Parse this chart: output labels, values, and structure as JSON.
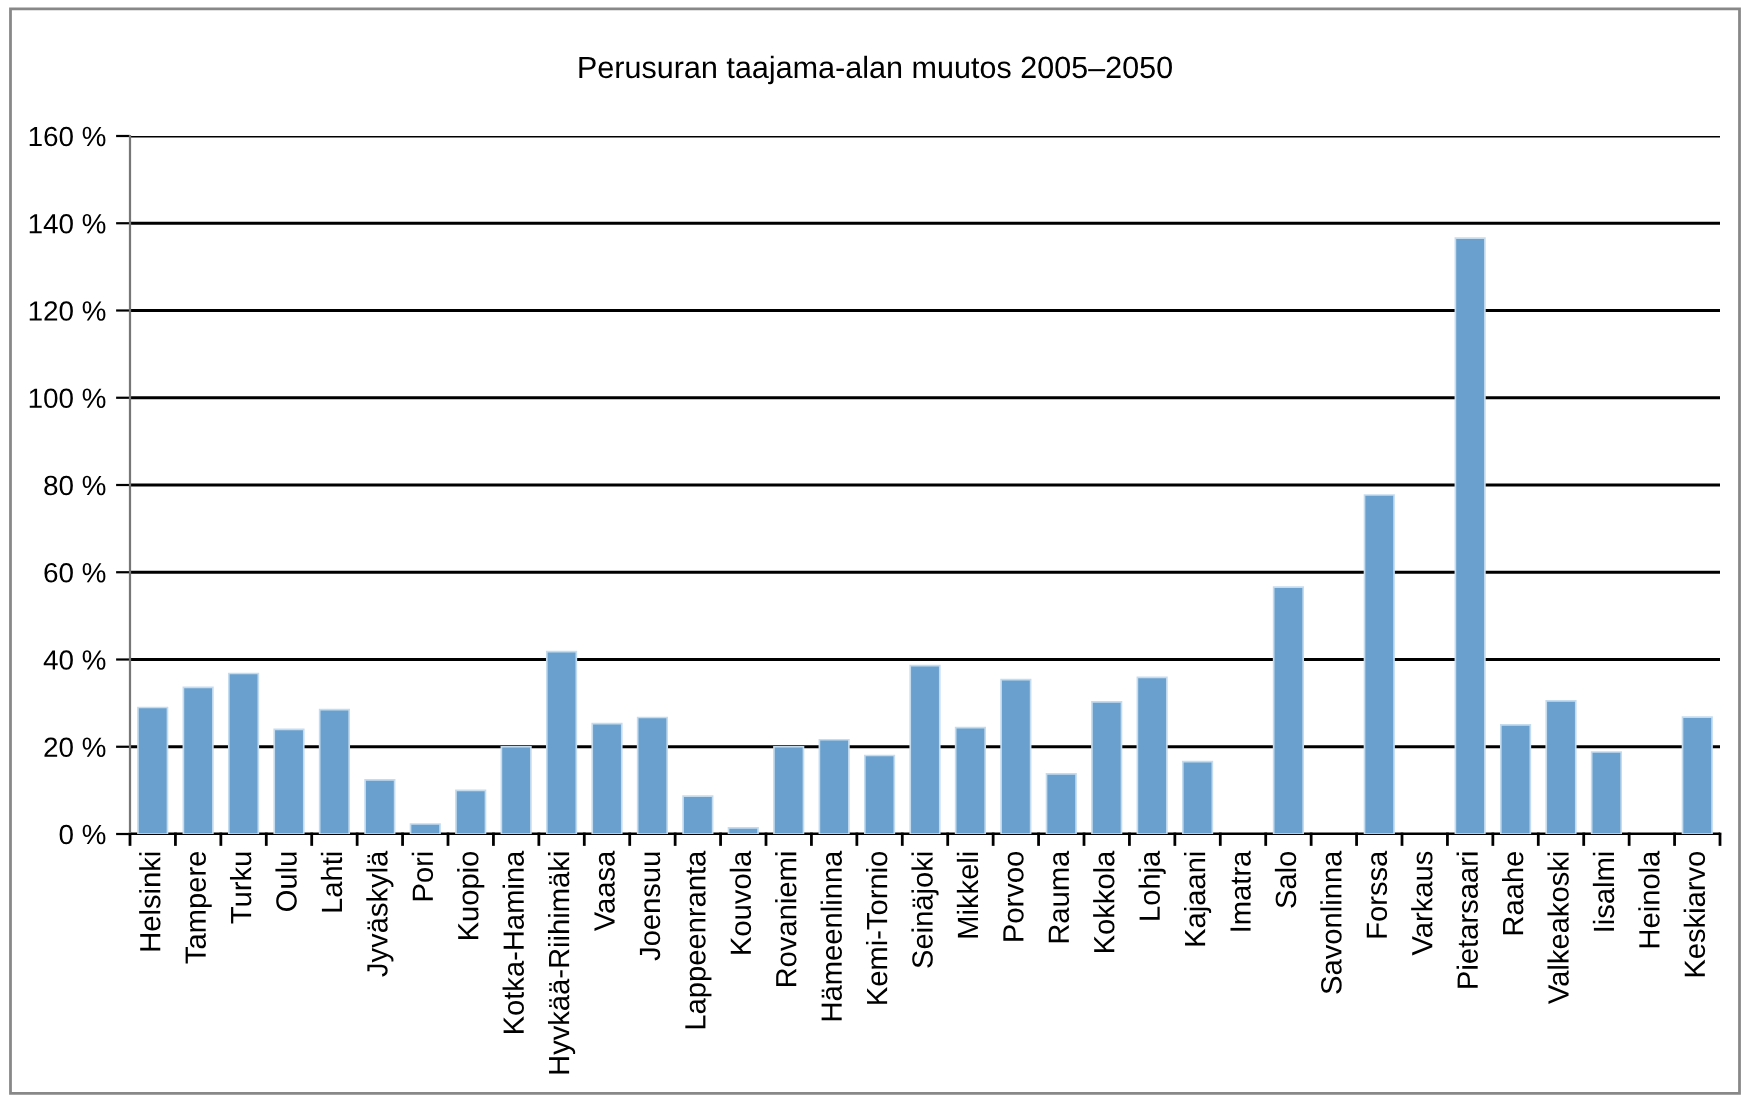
{
  "chart_data": {
    "type": "bar",
    "title": "Perusuran taajama-alan muutos 2005–2050",
    "categories": [
      "Helsinki",
      "Tampere",
      "Turku",
      "Oulu",
      "Lahti",
      "Jyväskylä",
      "Pori",
      "Kuopio",
      "Kotka-Hamina",
      "Hyvkää-Riihimäki",
      "Vaasa",
      "Joensuu",
      "Lappeenranta",
      "Kouvola",
      "Rovaniemi",
      "Hämeenlinna",
      "Kemi-Tornio",
      "Seinäjoki",
      "Mikkeli",
      "Porvoo",
      "Rauma",
      "Kokkola",
      "Lohja",
      "Kajaani",
      "Imatra",
      "Salo",
      "Savonlinna",
      "Forssa",
      "Varkaus",
      "Pietarsaari",
      "Raahe",
      "Valkeakoski",
      "Iisalmi",
      "Heinola",
      "Keskiarvo"
    ],
    "values": [
      29,
      33.6,
      36.8,
      24,
      28.5,
      12.4,
      2.3,
      10,
      20,
      41.8,
      25.3,
      26.7,
      8.7,
      1.4,
      20,
      21.6,
      18,
      38.6,
      24.4,
      35.4,
      13.8,
      30.3,
      35.9,
      16.6,
      null,
      56.6,
      null,
      77.7,
      null,
      136.6,
      25,
      30.5,
      18.8,
      null,
      26.8
    ],
    "color": "#6aa0cd",
    "ylim": [
      0,
      160
    ],
    "yticks": [
      {
        "value": 0,
        "label": "0 %"
      },
      {
        "value": 20,
        "label": "20 %"
      },
      {
        "value": 40,
        "label": "40 %"
      },
      {
        "value": 60,
        "label": "60 %"
      },
      {
        "value": 80,
        "label": "80 %"
      },
      {
        "value": 100,
        "label": "100 %"
      },
      {
        "value": 120,
        "label": "120 %"
      },
      {
        "value": 140,
        "label": "140 %"
      },
      {
        "value": 160,
        "label": "160 %"
      }
    ],
    "grid": "y"
  }
}
